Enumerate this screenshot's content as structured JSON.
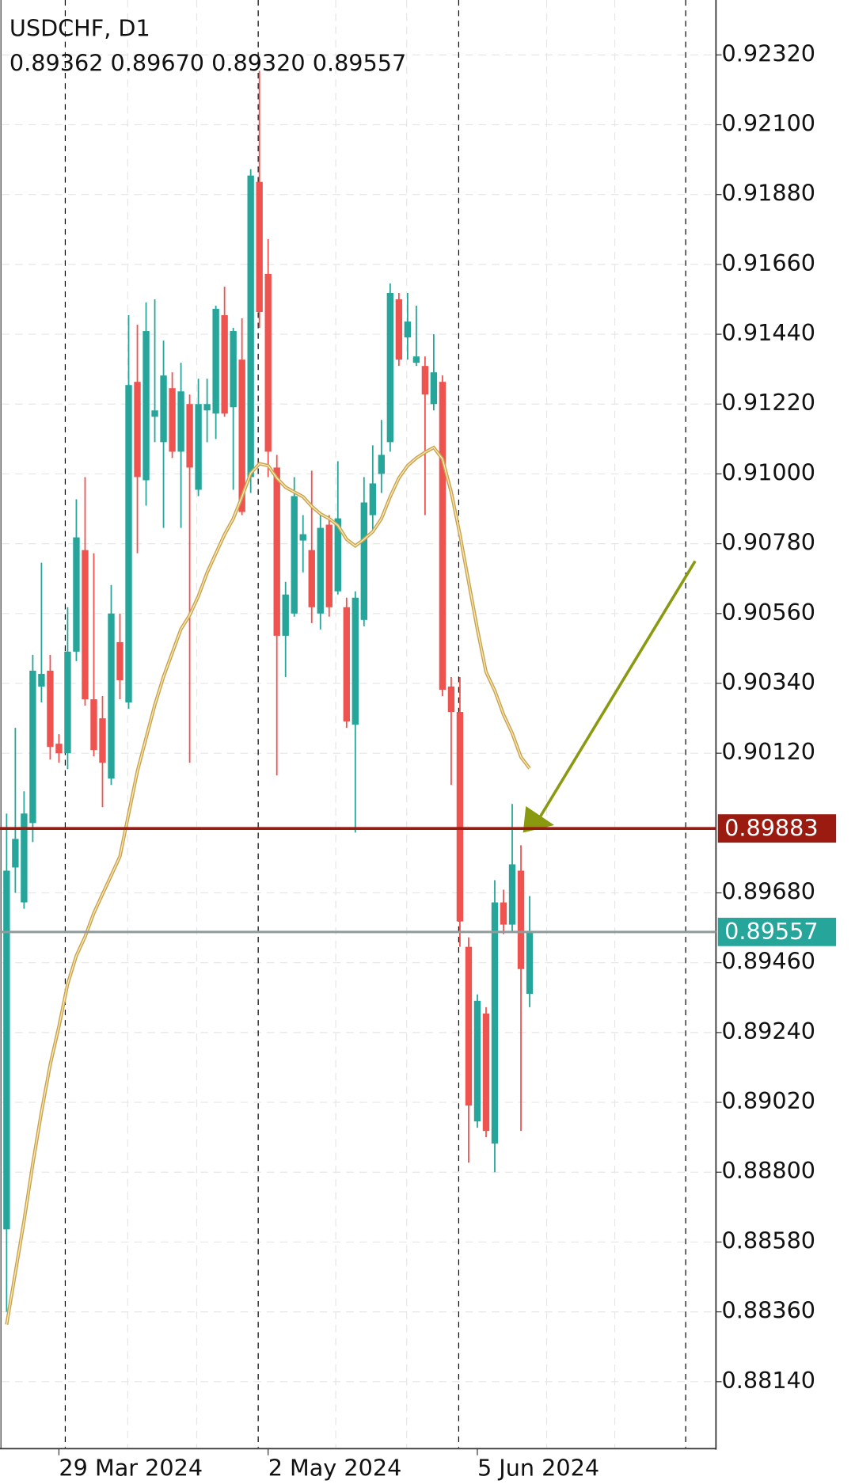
{
  "chart_data": {
    "type": "candlestick",
    "symbol": "USDCHF, D1",
    "quote": "0.89362 0.89670 0.89320 0.89557",
    "categories": [
      null,
      null,
      null,
      null,
      null,
      null,
      "29 Mar 2024",
      null,
      null,
      null,
      null,
      null,
      null,
      null,
      null,
      null,
      null,
      null,
      null,
      null,
      null,
      null,
      null,
      null,
      null,
      null,
      null,
      null,
      null,
      null,
      "2 May 2024",
      null,
      null,
      null,
      null,
      null,
      null,
      null,
      null,
      null,
      null,
      null,
      null,
      null,
      null,
      null,
      null,
      null,
      null,
      null,
      null,
      null,
      null,
      null,
      "5 Jun 2024",
      null,
      null,
      null,
      null,
      null,
      null
    ],
    "open": [
      0.8862,
      0.8976,
      0.8965,
      0.899,
      0.9033,
      0.9038,
      0.9015,
      0.9012,
      0.9044,
      0.9076,
      0.9029,
      0.9023,
      0.9004,
      0.9047,
      0.9028,
      0.9129,
      0.9098,
      0.9118,
      0.911,
      0.9127,
      0.9107,
      0.9122,
      0.9095,
      0.912,
      0.9119,
      0.915,
      0.9121,
      0.9136,
      0.9099,
      0.9192,
      0.9163,
      0.9102,
      0.9049,
      0.9056,
      0.9079,
      0.9076,
      0.9056,
      0.9084,
      0.9063,
      0.9058,
      0.9021,
      0.9054,
      0.9087,
      0.91,
      0.911,
      0.9155,
      0.9143,
      0.9135,
      0.9134,
      0.9122,
      0.9129,
      0.9033,
      0.9025,
      0.8951,
      0.8896,
      0.893,
      0.8889,
      0.8965,
      0.8958,
      0.8975,
      0.89362
    ],
    "high": [
      0.8993,
      0.902,
      0.9,
      0.9043,
      0.9072,
      0.9043,
      0.9018,
      0.9058,
      0.9092,
      0.9099,
      0.9075,
      0.903,
      0.9065,
      0.9056,
      0.915,
      0.9147,
      0.9154,
      0.9155,
      0.9142,
      0.9132,
      0.9135,
      0.9125,
      0.913,
      0.913,
      0.9153,
      0.9159,
      0.9146,
      0.9149,
      0.9196,
      0.9227,
      0.9174,
      0.9106,
      0.9066,
      0.9099,
      0.9087,
      0.9101,
      0.9088,
      0.9087,
      0.9104,
      0.9061,
      0.9063,
      0.9099,
      0.9109,
      0.9117,
      0.916,
      0.9157,
      0.9157,
      0.9153,
      0.9137,
      0.9144,
      0.9131,
      0.9036,
      0.9036,
      0.8954,
      0.8936,
      0.8932,
      0.8972,
      0.8969,
      0.8996,
      0.8983,
      0.8967
    ],
    "low": [
      0.8836,
      0.8968,
      0.8963,
      0.8984,
      0.9028,
      0.901,
      0.9009,
      0.9007,
      0.9041,
      0.9027,
      0.9011,
      0.8995,
      0.9002,
      0.9029,
      0.9026,
      0.9075,
      0.909,
      0.911,
      0.9083,
      0.9105,
      0.9083,
      0.9009,
      0.9093,
      0.911,
      0.9111,
      0.9118,
      0.9095,
      0.9087,
      0.9094,
      0.9146,
      0.9099,
      0.9005,
      0.9036,
      0.9055,
      0.9069,
      0.9053,
      0.9051,
      0.9055,
      0.9062,
      0.902,
      0.8987,
      0.9052,
      0.9082,
      0.9094,
      0.9107,
      0.9134,
      0.9136,
      0.9134,
      0.9087,
      0.912,
      0.903,
      0.9002,
      0.8951,
      0.8883,
      0.8894,
      0.8891,
      0.888,
      0.8955,
      0.8956,
      0.8893,
      0.8932
    ],
    "close": [
      0.8975,
      0.8985,
      0.8993,
      0.9038,
      0.9037,
      0.9014,
      0.9012,
      0.9044,
      0.908,
      0.9029,
      0.9013,
      0.9009,
      0.9056,
      0.9035,
      0.9128,
      0.9099,
      0.9145,
      0.912,
      0.9131,
      0.9107,
      0.9126,
      0.9102,
      0.9122,
      0.9122,
      0.9152,
      0.9119,
      0.9145,
      0.9088,
      0.9194,
      0.9151,
      0.9107,
      0.9049,
      0.9062,
      0.9093,
      0.9081,
      0.9058,
      0.9083,
      0.9058,
      0.9086,
      0.9022,
      0.9061,
      0.9091,
      0.9097,
      0.9106,
      0.9157,
      0.9136,
      0.9148,
      0.9137,
      0.9125,
      0.9132,
      0.9032,
      0.9025,
      0.8959,
      0.8901,
      0.8934,
      0.8893,
      0.8965,
      0.8958,
      0.8977,
      0.8944,
      0.89557
    ],
    "up_color": "#26a69a",
    "down_color": "#ef5350",
    "moving_average": {
      "color": "#c9a24a",
      "values": [
        0.8832,
        0.88483,
        0.88647,
        0.88826,
        0.8899,
        0.89139,
        0.89259,
        0.89393,
        0.89482,
        0.89542,
        0.89616,
        0.89676,
        0.89735,
        0.89795,
        0.89929,
        0.90063,
        0.90168,
        0.90272,
        0.90361,
        0.90436,
        0.90511,
        0.90555,
        0.90615,
        0.90689,
        0.90749,
        0.90809,
        0.90859,
        0.90928,
        0.91002,
        0.91032,
        0.91026,
        0.90987,
        0.90958,
        0.90943,
        0.90928,
        0.90898,
        0.90874,
        0.90859,
        0.90838,
        0.90794,
        0.90773,
        0.90794,
        0.90818,
        0.90859,
        0.90928,
        0.90987,
        0.91026,
        0.9105,
        0.91068,
        0.91083,
        0.91047,
        0.90943,
        0.90809,
        0.9066,
        0.90511,
        0.90376,
        0.90317,
        0.90242,
        0.90183,
        0.90108,
        0.90072
      ]
    },
    "levels": [
      {
        "value": 0.89883,
        "color": "#9b1b10",
        "label_color": "#9b1b10"
      },
      {
        "value": 0.89557,
        "color": "#8f9a9a",
        "label_color": "#26a69a"
      }
    ],
    "ylim": [
      0.87932,
      0.92493
    ],
    "yticks": [
      {
        "value": 0.9232,
        "label": "0.92320"
      },
      {
        "value": 0.921,
        "label": "0.92100"
      },
      {
        "value": 0.9188,
        "label": "0.91880"
      },
      {
        "value": 0.9166,
        "label": "0.91660"
      },
      {
        "value": 0.9144,
        "label": "0.91440"
      },
      {
        "value": 0.9122,
        "label": "0.91220"
      },
      {
        "value": 0.91,
        "label": "0.91000"
      },
      {
        "value": 0.9078,
        "label": "0.90780"
      },
      {
        "value": 0.9056,
        "label": "0.90560"
      },
      {
        "value": 0.9034,
        "label": "0.90340"
      },
      {
        "value": 0.9012,
        "label": "0.90120"
      },
      {
        "value": 0.8968,
        "label": "0.89680"
      },
      {
        "value": 0.8946,
        "label": "0.89460"
      },
      {
        "value": 0.8924,
        "label": "0.89240"
      },
      {
        "value": 0.8902,
        "label": "0.89020"
      },
      {
        "value": 0.888,
        "label": "0.88800"
      },
      {
        "value": 0.8858,
        "label": "0.88580"
      },
      {
        "value": 0.8836,
        "label": "0.88360"
      },
      {
        "value": 0.8814,
        "label": "0.88140"
      }
    ],
    "grid": true
  }
}
